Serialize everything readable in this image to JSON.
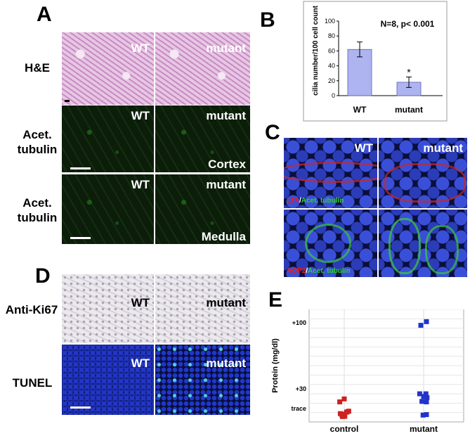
{
  "panels": {
    "A": {
      "letter": "A",
      "rows": [
        {
          "label": "H&E",
          "left": "WT",
          "right": "mutant",
          "corner": ""
        },
        {
          "label": "Acet.\ntubulin",
          "left": "WT",
          "right": "mutant",
          "corner": "Cortex"
        },
        {
          "label": "Acet.\ntubulin",
          "left": "WT",
          "right": "mutant",
          "corner": "Medulla"
        }
      ]
    },
    "B": {
      "letter": "B"
    },
    "C": {
      "letter": "C",
      "left": "WT",
      "right": "mutant",
      "legend_top": {
        "a": "LTA",
        "sep": "/",
        "b": "Acet. tubulin"
      },
      "legend_bottom": {
        "a": "AQP2",
        "sep": "/",
        "b": "Acet. tubulin"
      },
      "colors": {
        "red": "#e02020",
        "green": "#33cc33"
      }
    },
    "D": {
      "letter": "D",
      "rows": [
        {
          "label": "Anti-Ki67",
          "left": "WT",
          "right": "mutant"
        },
        {
          "label": "TUNEL",
          "left": "WT",
          "right": "mutant"
        }
      ]
    },
    "E": {
      "letter": "E"
    }
  },
  "chart_data": [
    {
      "type": "bar",
      "categories": [
        "WT",
        "mutant"
      ],
      "values": [
        62,
        18
      ],
      "errors": [
        10,
        7
      ],
      "significance": [
        "",
        "*"
      ],
      "annotation": "N=8, p< 0.001",
      "ylabel": "cilia number/100 cell count",
      "ylim": [
        0,
        100
      ],
      "yticks": [
        "0",
        "20",
        "40",
        "60",
        "80",
        "100"
      ],
      "bar_color": "#aeb4f0"
    },
    {
      "type": "scatter",
      "categories": [
        "control",
        "mutant"
      ],
      "ylabel": "Protein (mg/dl)",
      "yticks": [
        "trace",
        "+30",
        "+100"
      ],
      "series": [
        {
          "category": "control",
          "color": "#cc2222",
          "points": [
            [
              -0.16,
              0.62
            ],
            [
              0.0,
              0.74
            ],
            [
              -0.14,
              0.14
            ],
            [
              -0.08,
              0.07
            ],
            [
              0.0,
              0.12
            ],
            [
              0.1,
              0.21
            ],
            [
              0.16,
              0.24
            ],
            [
              -0.06,
              0.02
            ],
            [
              0.02,
              0.03
            ],
            [
              0.08,
              0.2
            ]
          ]
        },
        {
          "category": "mutant",
          "color": "#2233cc",
          "points": [
            [
              -0.1,
              3.75
            ],
            [
              0.1,
              3.9
            ],
            [
              -0.14,
              0.95
            ],
            [
              0.08,
              0.95
            ],
            [
              0.0,
              0.84
            ],
            [
              0.12,
              0.8
            ],
            [
              -0.06,
              0.64
            ],
            [
              0.1,
              0.62
            ],
            [
              -0.02,
              0.08
            ],
            [
              0.1,
              0.1
            ]
          ]
        }
      ]
    }
  ]
}
